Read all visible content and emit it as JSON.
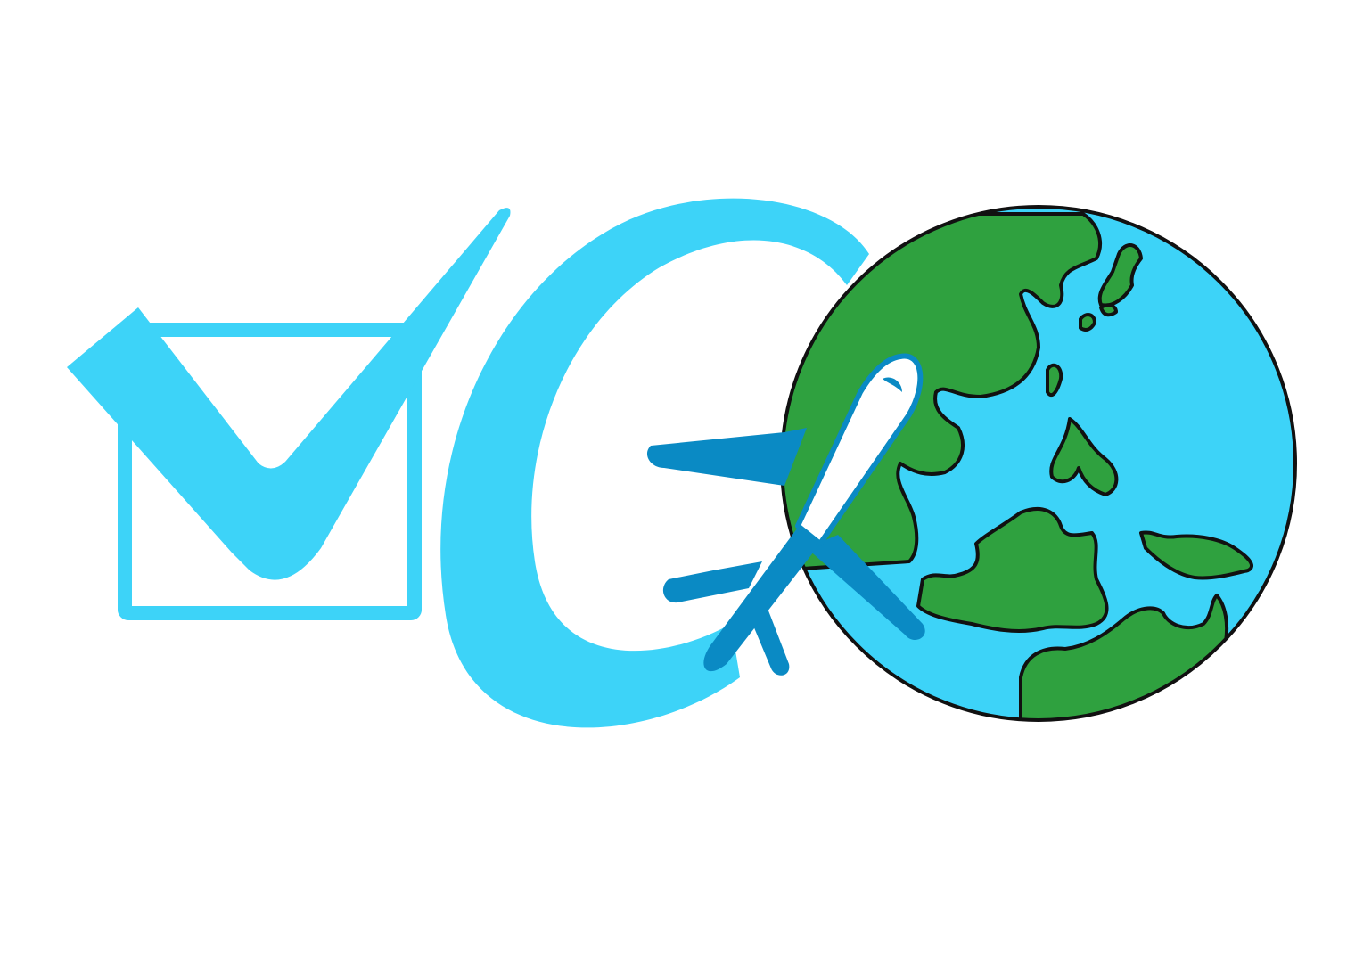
{
  "logo": {
    "description_tags": [
      "checkbox",
      "check-mark",
      "letter-g",
      "airplane",
      "globe"
    ],
    "colors": {
      "background": "#ffffff",
      "light_blue": "#3dd3f8",
      "ocean": "#3dd3f8",
      "land": "#2fa13f",
      "outline": "#111111",
      "plane_body": "#ffffff",
      "plane_wing": "#0a8ac4",
      "plane_outline": "#0a8ac4"
    },
    "icons": [
      "checkbox-icon",
      "check-mark-icon",
      "letter-g-icon",
      "airplane-icon",
      "globe-icon"
    ]
  }
}
